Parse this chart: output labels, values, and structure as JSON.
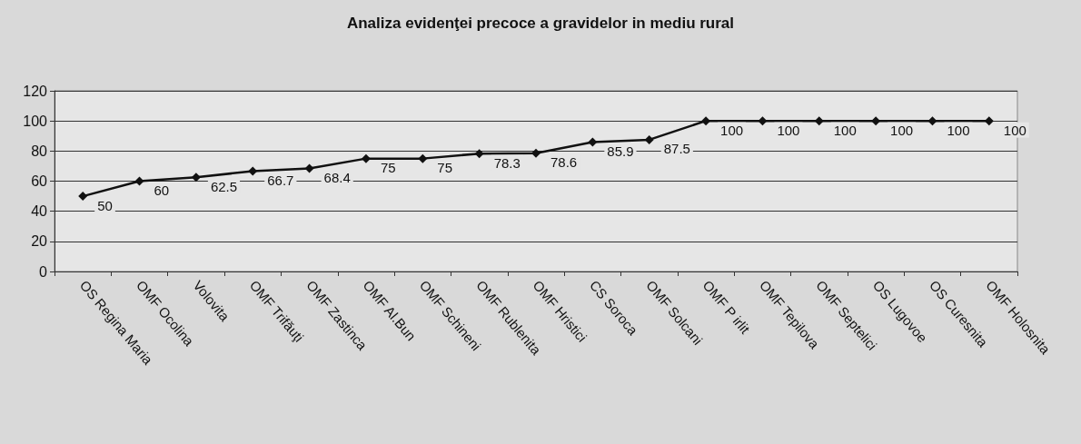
{
  "chart_data": {
    "type": "line",
    "title": "Analiza evidenţei precoce a gravidelor in mediu rural",
    "categories": [
      "OS Regina Maria",
      "OMF Ocolina",
      "Volovita",
      "OMF Trifăuţi",
      "OMF Zastinca",
      "OMF Al.Bun",
      "OMF Schineni",
      "OMF Rublenita",
      "OMF Hristici",
      "CS Soroca",
      "OMF Solcani",
      "OMF P irlit",
      "OMF Tepilova",
      "OMF Septelici",
      "OS Lugovoe",
      "OS Curesnita",
      "OMF Holosnita"
    ],
    "values": [
      50,
      60,
      62.5,
      66.7,
      68.4,
      75,
      75,
      78.3,
      78.6,
      85.9,
      87.5,
      100,
      100,
      100,
      100,
      100,
      100
    ],
    "color": "#111111",
    "ylim": [
      0,
      120
    ],
    "yticks": [
      0,
      20,
      40,
      60,
      80,
      100,
      120
    ],
    "grid": "y",
    "data_labels": true,
    "marker": "diamond",
    "line_style": "solid"
  }
}
